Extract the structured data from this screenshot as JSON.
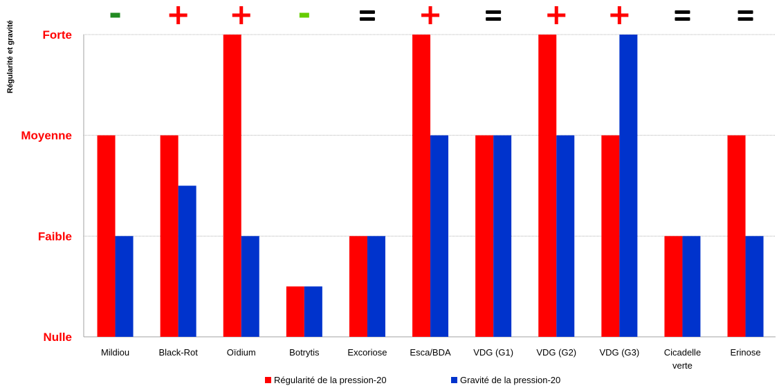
{
  "chart_data": {
    "type": "bar",
    "ylabel": "Régularité et gravité",
    "y_levels": [
      "Nulle",
      "Faible",
      "Moyenne",
      "Forte"
    ],
    "ylim": [
      0,
      3
    ],
    "grid": true,
    "legend_position": "bottom",
    "categories": [
      "Mildiou",
      "Black-Rot",
      "Oïdium",
      "Botrytis",
      "Excoriose",
      "Esca/BDA",
      "VDG (G1)",
      "VDG (G2)",
      "VDG (G3)",
      "Cicadelle verte",
      "Erinose"
    ],
    "series": [
      {
        "name": "Régularité de la pression-20",
        "color": "#ff0000",
        "values": [
          2,
          2,
          3,
          0.5,
          1,
          3,
          2,
          3,
          2,
          1,
          2
        ]
      },
      {
        "name": "Gravité de la pression-20",
        "color": "#0033cc",
        "values": [
          1,
          1.5,
          1,
          0.5,
          1,
          2,
          2,
          2,
          3,
          1,
          1
        ]
      }
    ],
    "trend_markers": [
      "-",
      "+",
      "+",
      "-",
      "=",
      "+",
      "=",
      "+",
      "+",
      "=",
      "="
    ],
    "trend_colors": {
      "-": "#2ca02c",
      "+": "#ff0000",
      "=": "#000000"
    },
    "trend_colors_by_category": [
      "#228b22",
      "#ff0000",
      "#ff0000",
      "#66cc00",
      "#000000",
      "#ff0000",
      "#000000",
      "#ff0000",
      "#ff0000",
      "#000000",
      "#000000"
    ]
  }
}
